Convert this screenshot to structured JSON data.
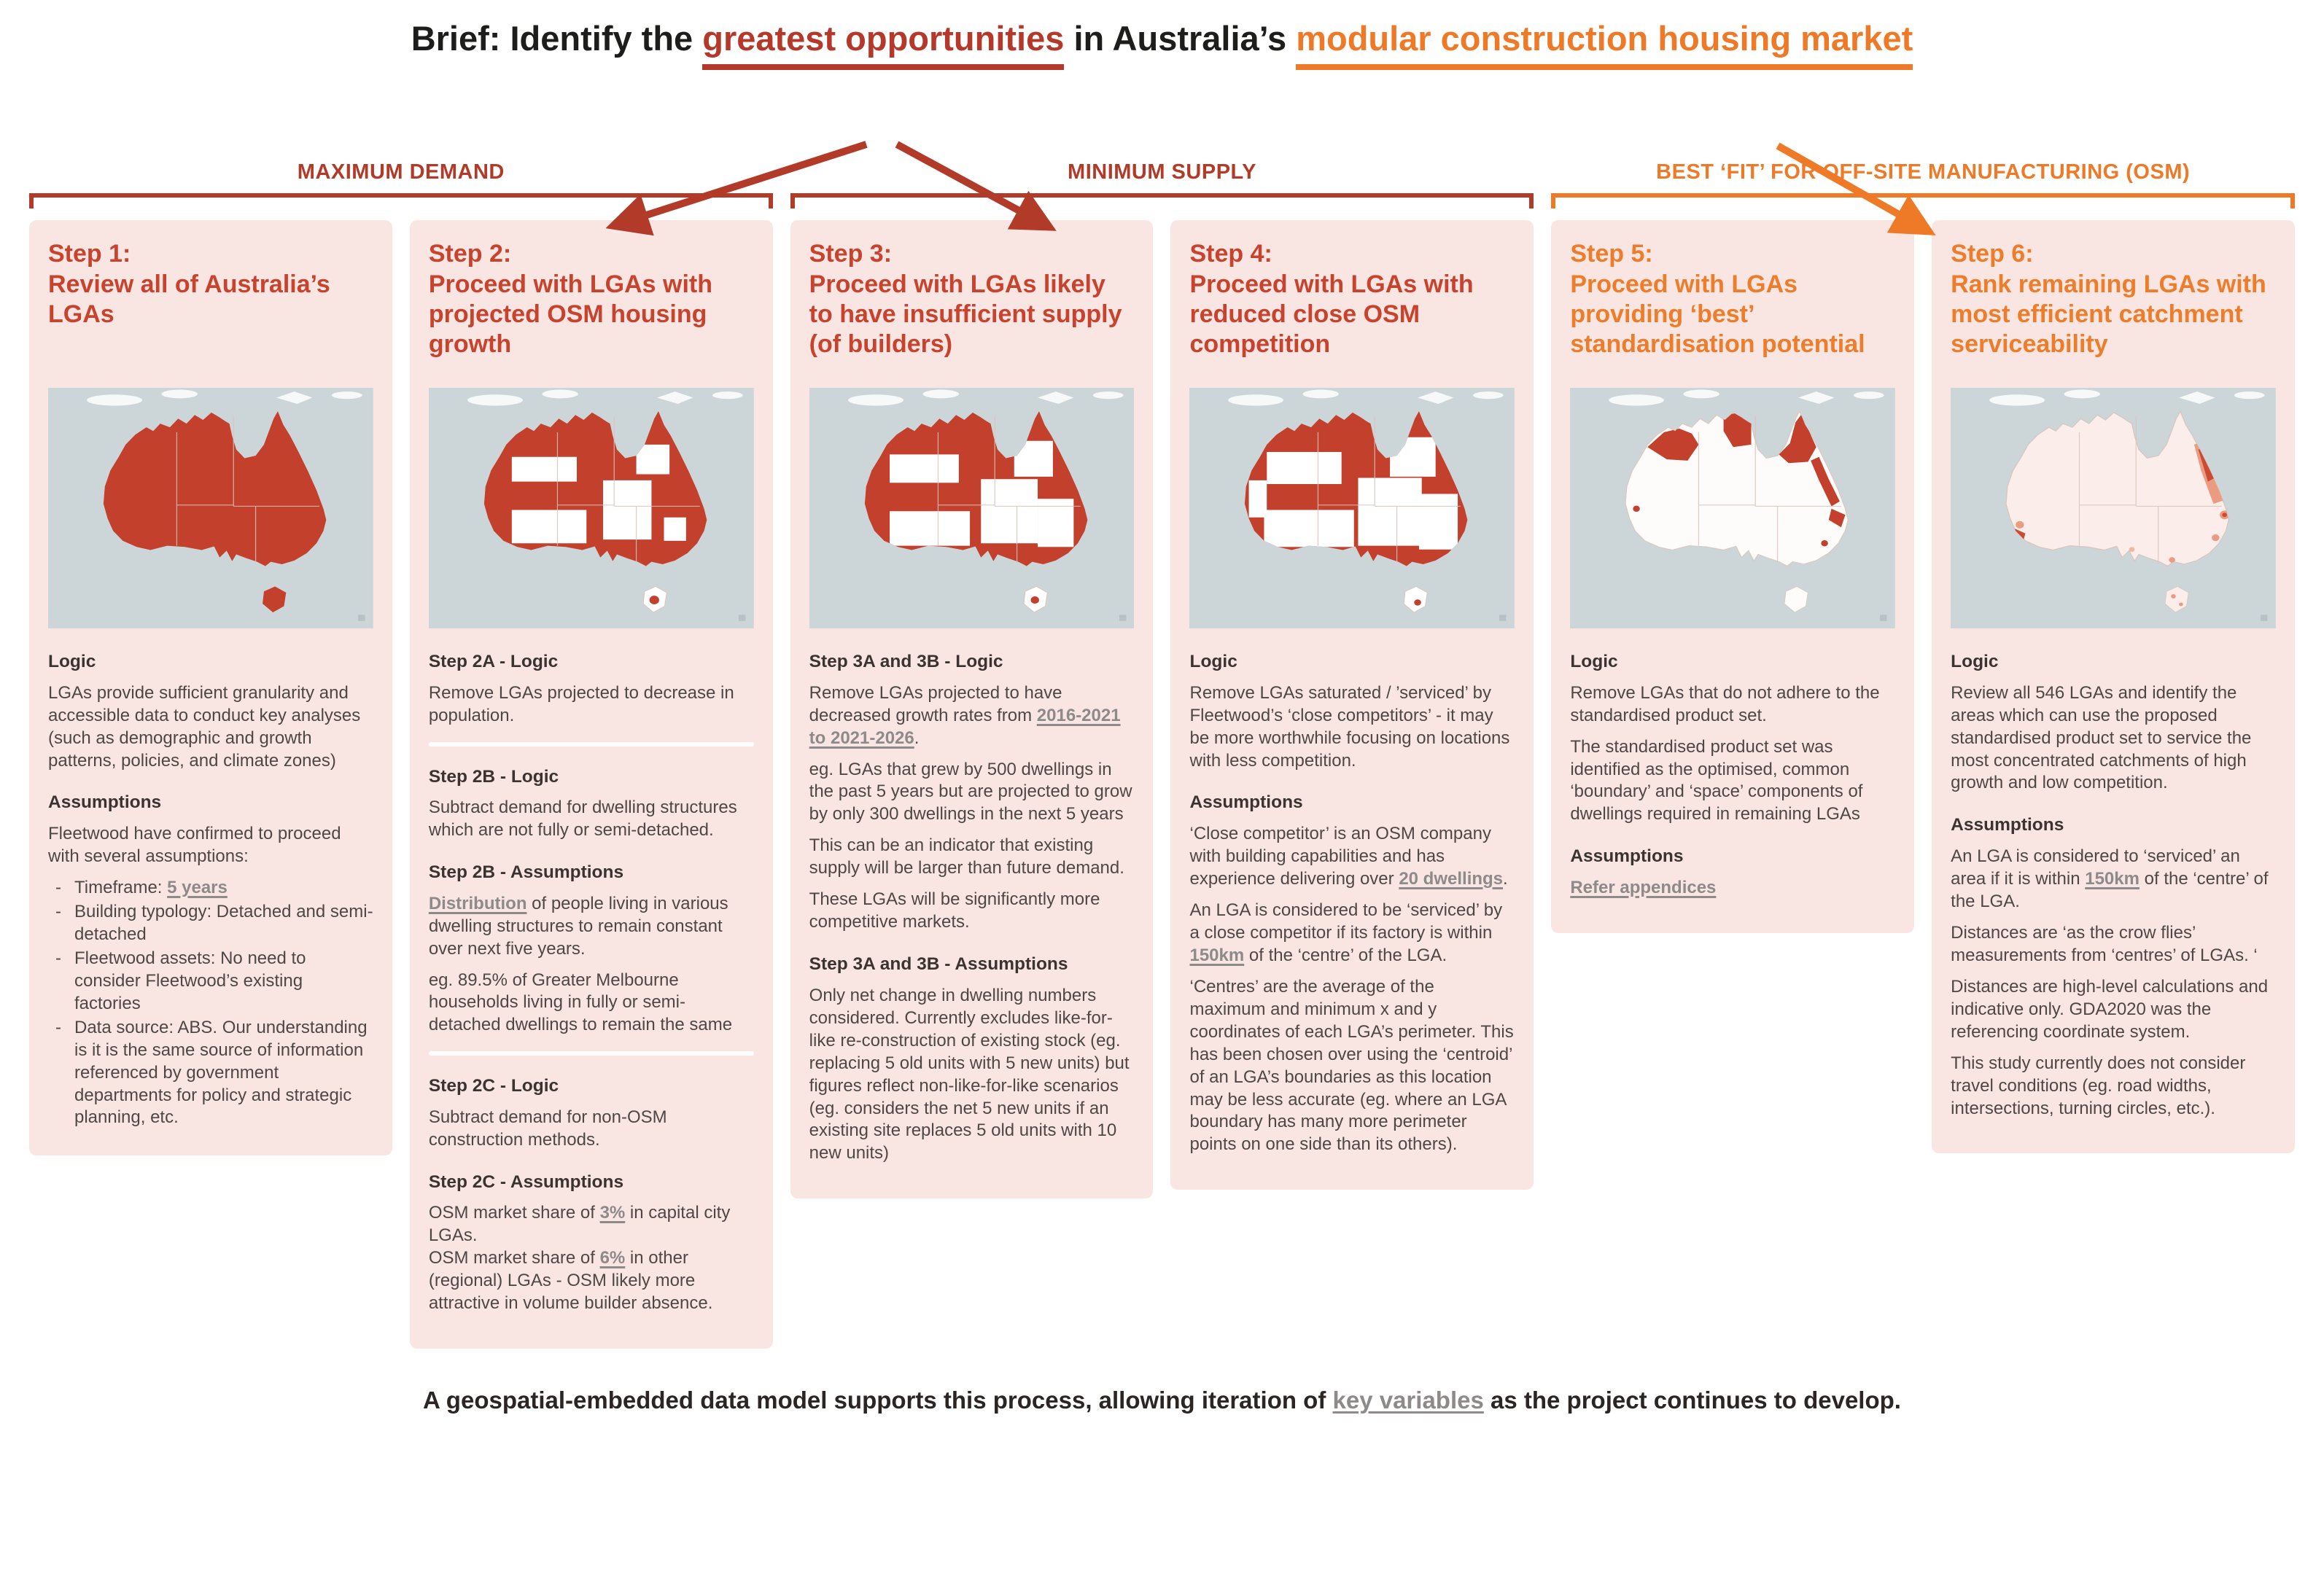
{
  "title": {
    "prefix": "Brief: Identify the ",
    "red": "greatest opportunities",
    "middle": " in Australia’s ",
    "orange": "modular construction housing market"
  },
  "colors": {
    "red_dark": "#b5392a",
    "red_accent": "#c8432e",
    "orange": "#ee7a28",
    "card_bg": "#f9e6e3",
    "map_sea": "#ccd6d9",
    "map_red": "#c2402c"
  },
  "groups": [
    {
      "label": "MAXIMUM DEMAND",
      "color": "#b23a28"
    },
    {
      "label": "MINIMUM SUPPLY",
      "color": "#b23a28"
    },
    {
      "label": "BEST ‘FIT’ FOR OFF-SITE MANUFACTURING (OSM)",
      "color": "#ee7a28"
    }
  ],
  "steps": [
    {
      "label": "Step 1:",
      "subtitle": "Review all of Australia’s LGAs",
      "accent": "#c8432e",
      "map_description": "Map of Australia with all LGAs shaded red",
      "blocks": [
        {
          "type": "heading",
          "segs": [
            {
              "t": "Logic"
            }
          ]
        },
        {
          "type": "para",
          "segs": [
            {
              "t": "LGAs provide sufficient granularity and accessible data to conduct key analyses (such as demographic and growth patterns, policies, and climate zones)"
            }
          ]
        },
        {
          "type": "heading",
          "segs": [
            {
              "t": "Assumptions"
            }
          ]
        },
        {
          "type": "para",
          "segs": [
            {
              "t": "Fleetwood have confirmed to proceed with several assumptions:"
            }
          ]
        },
        {
          "type": "list",
          "items": [
            [
              {
                "t": "Timeframe: "
              },
              {
                "t": "5 years",
                "u": true
              }
            ],
            [
              {
                "t": "Building typology: Detached and semi-detached"
              }
            ],
            [
              {
                "t": "Fleetwood assets: No need to consider Fleetwood’s existing factories"
              }
            ],
            [
              {
                "t": "Data source: ABS. Our understanding is it is the same source of information referenced by government departments for policy and strategic planning, etc."
              }
            ]
          ]
        }
      ]
    },
    {
      "label": "Step 2:",
      "subtitle": "Proceed with LGAs with projected OSM housing growth",
      "accent": "#c8432e",
      "map_description": "Map of Australia with LGAs projected for OSM housing growth shaded red",
      "blocks": [
        {
          "type": "heading",
          "segs": [
            {
              "t": "Step 2A - Logic"
            }
          ]
        },
        {
          "type": "para",
          "segs": [
            {
              "t": "Remove LGAs projected to decrease in population."
            }
          ]
        },
        {
          "type": "divider"
        },
        {
          "type": "heading",
          "segs": [
            {
              "t": "Step 2B - Logic"
            }
          ]
        },
        {
          "type": "para",
          "segs": [
            {
              "t": "Subtract demand for dwelling structures which are not fully or semi-detached."
            }
          ]
        },
        {
          "type": "heading",
          "segs": [
            {
              "t": "Step 2B - Assumptions"
            }
          ]
        },
        {
          "type": "para",
          "segs": [
            {
              "t": "Distribution",
              "u": true
            },
            {
              "t": " of people living in various dwelling structures to remain constant over next five years."
            }
          ]
        },
        {
          "type": "para",
          "segs": [
            {
              "t": "eg. 89.5% of Greater Melbourne households living in fully or semi-detached dwellings to remain the same"
            }
          ]
        },
        {
          "type": "divider"
        },
        {
          "type": "heading",
          "segs": [
            {
              "t": "Step 2C - Logic"
            }
          ]
        },
        {
          "type": "para",
          "segs": [
            {
              "t": "Subtract demand for non-OSM construction methods."
            }
          ]
        },
        {
          "type": "heading",
          "segs": [
            {
              "t": "Step 2C - Assumptions"
            }
          ]
        },
        {
          "type": "para",
          "segs": [
            {
              "t": "OSM market share of "
            },
            {
              "t": "3%",
              "u": true
            },
            {
              "t": " in capital city LGAs."
            },
            {
              "br": true
            },
            {
              "t": "OSM market share of "
            },
            {
              "t": "6%",
              "u": true
            },
            {
              "t": " in other (regional) LGAs - OSM likely more attractive in volume builder absence."
            }
          ]
        }
      ]
    },
    {
      "label": "Step 3:",
      "subtitle": "Proceed with LGAs likely to have insufficient supply (of builders)",
      "accent": "#c8432e",
      "map_description": "Map of Australia with LGAs likely to have insufficient builder supply shaded red",
      "blocks": [
        {
          "type": "heading",
          "segs": [
            {
              "t": "Step 3A and 3B - Logic"
            }
          ]
        },
        {
          "type": "para",
          "segs": [
            {
              "t": "Remove LGAs projected to have decreased growth rates from "
            },
            {
              "t": "2016-2021 to 2021-2026",
              "u": true
            },
            {
              "t": "."
            }
          ]
        },
        {
          "type": "para",
          "segs": [
            {
              "t": "eg. LGAs that grew by 500 dwellings in the past 5 years but are projected to grow by only 300 dwellings in the next 5 years"
            }
          ]
        },
        {
          "type": "para",
          "segs": [
            {
              "t": "This can be an indicator that existing supply will be larger than future demand."
            }
          ]
        },
        {
          "type": "para",
          "segs": [
            {
              "t": "These LGAs will be significantly more competitive markets."
            }
          ]
        },
        {
          "type": "heading",
          "segs": [
            {
              "t": "Step 3A and 3B - Assumptions"
            }
          ]
        },
        {
          "type": "para",
          "segs": [
            {
              "t": "Only net change in dwelling numbers considered. Currently excludes like-for-like re-construction of existing stock (eg. replacing 5 old units with 5 new units) but figures reflect non-like-for-like scenarios (eg. considers the net 5 new units if an existing site replaces 5 old units with 10 new units)"
            }
          ]
        }
      ]
    },
    {
      "label": "Step 4:",
      "subtitle": "Proceed with LGAs with reduced close OSM competition",
      "accent": "#c8432e",
      "map_description": "Map of Australia with LGAs having reduced close OSM competition shaded red",
      "blocks": [
        {
          "type": "heading",
          "segs": [
            {
              "t": "Logic"
            }
          ]
        },
        {
          "type": "para",
          "segs": [
            {
              "t": "Remove LGAs saturated / ’serviced’ by Fleetwood’s ‘close competitors’ - it may be more worthwhile focusing on locations with less competition."
            }
          ]
        },
        {
          "type": "heading",
          "segs": [
            {
              "t": "Assumptions"
            }
          ]
        },
        {
          "type": "para",
          "segs": [
            {
              "t": "‘Close competitor’ is an OSM company with building capabilities and has experience delivering over "
            },
            {
              "t": "20 dwellings",
              "u": true
            },
            {
              "t": "."
            }
          ]
        },
        {
          "type": "para",
          "segs": [
            {
              "t": "An LGA is considered to be ‘serviced’ by a close competitor if its factory is within "
            },
            {
              "t": "150km",
              "u": true
            },
            {
              "t": " of the ‘centre’ of the LGA."
            }
          ]
        },
        {
          "type": "para",
          "segs": [
            {
              "t": "‘Centres’ are the average of the maximum and minimum x and y coordinates of each LGA’s perimeter. This has been chosen over using the ‘centroid’ of an LGA’s boundaries as this location may be less accurate (eg. where an LGA boundary has many more perimeter points on one side than its others)."
            }
          ]
        }
      ]
    },
    {
      "label": "Step 5:",
      "subtitle": "Proceed with LGAs providing ‘best’ standardisation potential",
      "accent": "#ed7d2b",
      "map_description": "Map of Australia mostly white with red LGAs along the north and east coasts",
      "blocks": [
        {
          "type": "heading",
          "segs": [
            {
              "t": "Logic"
            }
          ]
        },
        {
          "type": "para",
          "segs": [
            {
              "t": "Remove LGAs that do not adhere to the standardised product set."
            }
          ]
        },
        {
          "type": "para",
          "segs": [
            {
              "t": "The standardised product set was identified as the optimised, common ‘boundary’ and ‘space’ components of dwellings required in remaining LGAs"
            }
          ]
        },
        {
          "type": "heading",
          "segs": [
            {
              "t": "Assumptions"
            }
          ]
        },
        {
          "type": "para",
          "segs": [
            {
              "t": "Refer appendices",
              "u": true,
              "b": true
            }
          ]
        }
      ]
    },
    {
      "label": "Step 6:",
      "subtitle": "Rank remaining LGAs with most efficient catchment serviceability",
      "accent": "#ed7d2b",
      "map_description": "Pale map of Australia with small red ranked catchments on the east coast and southwest",
      "blocks": [
        {
          "type": "heading",
          "segs": [
            {
              "t": "Logic"
            }
          ]
        },
        {
          "type": "para",
          "segs": [
            {
              "t": "Review all 546 LGAs and identify the areas which can use the proposed standardised product set to service the most concentrated catchments of high growth and low competition."
            }
          ]
        },
        {
          "type": "heading",
          "segs": [
            {
              "t": "Assumptions"
            }
          ]
        },
        {
          "type": "para",
          "segs": [
            {
              "t": "An LGA is considered to ‘serviced’ an area if it is within "
            },
            {
              "t": "150km",
              "u": true
            },
            {
              "t": " of the ‘centre’ of the LGA."
            }
          ]
        },
        {
          "type": "para",
          "segs": [
            {
              "t": "Distances are ‘as the crow flies’ measurements from ‘centres’ of LGAs. ‘"
            }
          ]
        },
        {
          "type": "para",
          "segs": [
            {
              "t": "Distances are high-level calculations and indicative only. GDA2020 was the referencing coordinate system."
            }
          ]
        },
        {
          "type": "para",
          "segs": [
            {
              "t": "This study currently does not consider travel conditions (eg. road widths, intersections, turning circles, etc.)."
            }
          ]
        }
      ]
    }
  ],
  "footer": {
    "segs": [
      {
        "t": "A geospatial-embedded data model supports this process, allowing iteration of "
      },
      {
        "t": "key variables",
        "u": true
      },
      {
        "t": " as the project continues to develop."
      }
    ]
  }
}
